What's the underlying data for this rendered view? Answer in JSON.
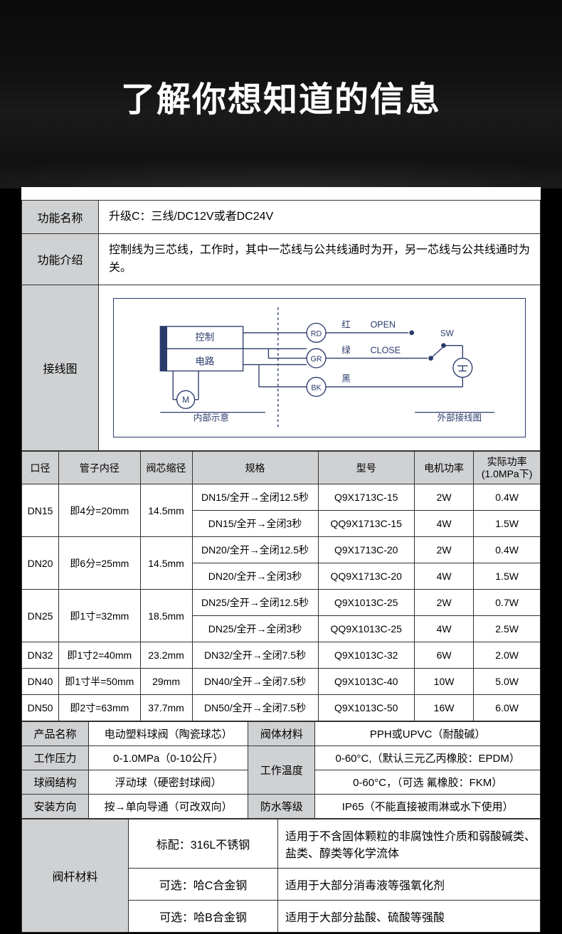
{
  "hero": {
    "title": "了解你想知道的信息"
  },
  "info": {
    "row1_label": "功能名称",
    "row1_value": "升级C：三线/DC12V或者DC24V",
    "row2_label": "功能介绍",
    "row2_value": "控制线为三芯线，工作时，其中一芯线与公共线通时为开，另一芯线与公共线通时为关。",
    "row3_label": "接线图"
  },
  "diagram": {
    "stroke": "#2a3a6a",
    "control_label": "控制",
    "circuit_label": "电路",
    "motor_label": "M",
    "internal_label": "内部示意",
    "external_label": "外部接线图",
    "rd": "RD",
    "gr": "GR",
    "bk": "BK",
    "red": "红",
    "green": "绿",
    "black": "黑",
    "open": "OPEN",
    "close": "CLOSE",
    "sw": "SW",
    "ground": "±"
  },
  "spec": {
    "headers": [
      "口径",
      "管子内径",
      "阀芯缩径",
      "规格",
      "型号",
      "电机功率",
      "实际功率\n(1.0MPa下)"
    ],
    "groups": [
      {
        "dn": "DN15",
        "pipe": "即4分=20mm",
        "core": "14.5mm",
        "rows": [
          {
            "spec": "DN15/全开→全闭12.5秒",
            "model": "Q9X1713C-15",
            "mp": "2W",
            "rp": "0.4W"
          },
          {
            "spec": "DN15/全开→全闭3秒",
            "model": "QQ9X1713C-15",
            "mp": "4W",
            "rp": "1.5W"
          }
        ]
      },
      {
        "dn": "DN20",
        "pipe": "即6分=25mm",
        "core": "14.5mm",
        "rows": [
          {
            "spec": "DN20/全开→全闭12.5秒",
            "model": "Q9X1713C-20",
            "mp": "2W",
            "rp": "0.4W"
          },
          {
            "spec": "DN20/全开→全闭3秒",
            "model": "QQ9X1713C-20",
            "mp": "4W",
            "rp": "1.5W"
          }
        ]
      },
      {
        "dn": "DN25",
        "pipe": "即1寸=32mm",
        "core": "18.5mm",
        "rows": [
          {
            "spec": "DN25/全开→全闭12.5秒",
            "model": "Q9X1013C-25",
            "mp": "2W",
            "rp": "0.7W"
          },
          {
            "spec": "DN25/全开→全闭3秒",
            "model": "QQ9X1013C-25",
            "mp": "4W",
            "rp": "2.5W"
          }
        ]
      },
      {
        "dn": "DN32",
        "pipe": "即1寸2=40mm",
        "core": "23.2mm",
        "rows": [
          {
            "spec": "DN32/全开→全闭7.5秒",
            "model": "Q9X1013C-32",
            "mp": "6W",
            "rp": "2.0W"
          }
        ]
      },
      {
        "dn": "DN40",
        "pipe": "即1寸半=50mm",
        "core": "29mm",
        "rows": [
          {
            "spec": "DN40/全开→全闭7.5秒",
            "model": "Q9X1013C-40",
            "mp": "10W",
            "rp": "5.0W"
          }
        ]
      },
      {
        "dn": "DN50",
        "pipe": "即2寸=63mm",
        "core": "37.7mm",
        "rows": [
          {
            "spec": "DN50/全开→全闭7.5秒",
            "model": "Q9X1013C-50",
            "mp": "16W",
            "rp": "6.0W"
          }
        ]
      }
    ]
  },
  "attrs": {
    "product_name_h": "产品名称",
    "product_name_v": "电动塑料球阀（陶瓷球芯）",
    "body_mat_h": "阀体材料",
    "body_mat_v": "PPH或UPVC（耐酸碱）",
    "pressure_h": "工作压力",
    "pressure_v": "0-1.0MPa（0-10公斤）",
    "temp_h": "工作温度",
    "temp_v1": "0-60°C,（默认三元乙丙橡胶：EPDM）",
    "temp_v2": "0-60°C，（可选 氟橡胶：FKM）",
    "struct_h": "球阀结构",
    "struct_v": "浮动球（硬密封球阀）",
    "install_h": "安装方向",
    "install_v": "按→单向导通（可改双向）",
    "ip_h": "防水等级",
    "ip_v": "IP65（不能直接被雨淋或水下使用）"
  },
  "stem": {
    "header": "阀杆材料",
    "rows": [
      {
        "mat": "标配：316L不锈钢",
        "desc": "适用于不含固体颗粒的非腐蚀性介质和弱酸碱类、盐类、醇类等化学流体"
      },
      {
        "mat": "可选：哈C合金钢",
        "desc": "适用于大部分消毒液等强氧化剂"
      },
      {
        "mat": "可选：哈B合金钢",
        "desc": "适用于大部分盐酸、硫酸等强酸"
      }
    ]
  },
  "colors": {
    "header_bg": "#cfd1d3",
    "border": "#333333",
    "diagram_stroke": "#2a3a6a"
  }
}
